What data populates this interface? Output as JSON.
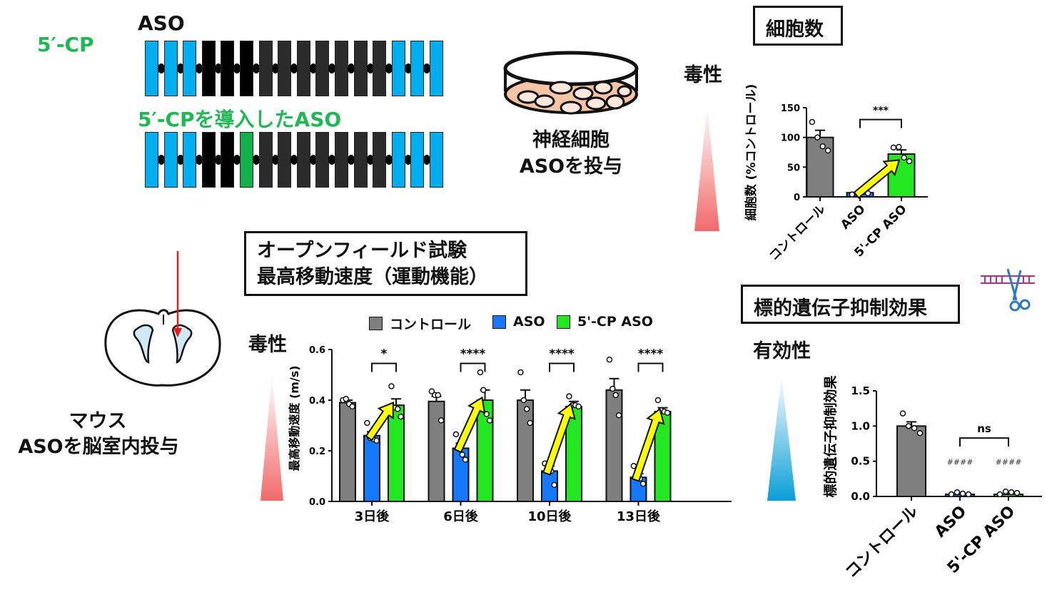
{
  "aso_panel": {
    "label_5cp": "5′-CP",
    "label_aso": "ASO",
    "label_modified": "5′-CPを導入したASO",
    "strand_aso": [
      "wing",
      "wing",
      "wing",
      "gap-dark",
      "gap-dark",
      "gap-dark",
      "gap",
      "gap",
      "gap",
      "gap",
      "gap",
      "gap",
      "gap",
      "wing",
      "wing",
      "wing"
    ],
    "strand_modified": [
      "wing",
      "wing",
      "wing",
      "gap-dark",
      "gap-dark",
      "5cp",
      "gap",
      "gap",
      "gap",
      "gap",
      "gap",
      "gap",
      "gap",
      "wing",
      "wing",
      "wing"
    ],
    "colors": {
      "wing": "#00aeef",
      "gap-dark": "#000000",
      "gap": "#2b2b2b",
      "5cp": "#12b04a"
    }
  },
  "neuron_panel": {
    "line1": "神経細胞",
    "line2": "ASOを投与"
  },
  "mouse_panel": {
    "line1": "マウス",
    "line2": "ASOを脳室内投与"
  },
  "cell_count_title": "細胞数",
  "open_field_title": {
    "line1": "オープンフィールド試験",
    "line2": "最高移動速度（運動機能）"
  },
  "target_title": "標的遺伝子抑制効果",
  "toxicity_label_1": "毒性",
  "toxicity_label_2": "毒性",
  "efficacy_label": "有効性",
  "legend": [
    {
      "label": "コントロール",
      "color": "#7f7f7f"
    },
    {
      "label": "ASO",
      "color": "#1479ff"
    },
    {
      "label": "5'-CP ASO",
      "color": "#22e822"
    }
  ],
  "chart_data": [
    {
      "id": "cell_count",
      "type": "bar",
      "ylabel": "細胞数 (%コントロール)",
      "ylim": [
        0,
        150
      ],
      "yticks": [
        "0",
        "50",
        "100",
        "150"
      ],
      "categories": [
        "コントロール",
        "ASO",
        "5'-CP ASO"
      ],
      "values": [
        100,
        7,
        72
      ],
      "errors": [
        12,
        2,
        7
      ],
      "points": [
        [
          126,
          100,
          85,
          78
        ],
        [
          4,
          6,
          8,
          6
        ],
        [
          83,
          84,
          66,
          60
        ]
      ],
      "colors": [
        "#7f7f7f",
        "#1479ff",
        "#22e822"
      ],
      "significance": [
        {
          "between": [
            "ASO",
            "5'-CP ASO"
          ],
          "label": "***"
        }
      ]
    },
    {
      "id": "max_speed",
      "type": "bar",
      "ylabel": "最高移動速度 (m/s)",
      "ylim": [
        0,
        0.6
      ],
      "yticks": [
        "0.0",
        "0.2",
        "0.4",
        "0.6"
      ],
      "categories": [
        "3日後",
        "6日後",
        "10日後",
        "13日後"
      ],
      "series": [
        {
          "name": "コントロール",
          "values": [
            0.39,
            0.395,
            0.4,
            0.44
          ],
          "errors": [
            0.01,
            0.02,
            0.04,
            0.045
          ],
          "points": [
            [
              0.4,
              0.405,
              0.385,
              0.375
            ],
            [
              0.435,
              0.42,
              0.42,
              0.32
            ],
            [
              0.51,
              0.4,
              0.365,
              0.31
            ],
            [
              0.56,
              0.445,
              0.42,
              0.34
            ]
          ]
        },
        {
          "name": "ASO",
          "values": [
            0.26,
            0.21,
            0.12,
            0.095
          ],
          "errors": [
            0.015,
            0.02,
            0.02,
            0.015
          ],
          "points": [
            [
              0.31,
              0.25,
              0.245,
              0.24
            ],
            [
              0.265,
              0.225,
              0.185,
              0.165
            ],
            [
              0.15,
              0.14,
              0.12,
              0.065
            ],
            [
              0.14,
              0.11,
              0.09,
              0.07
            ]
          ]
        },
        {
          "name": "5'-CP ASO",
          "values": [
            0.38,
            0.4,
            0.375,
            0.355
          ],
          "errors": [
            0.025,
            0.04,
            0.02,
            0.015
          ],
          "points": [
            [
              0.455,
              0.37,
              0.365,
              0.335
            ],
            [
              0.51,
              0.44,
              0.345,
              0.32
            ],
            [
              0.415,
              0.38,
              0.38,
              0.375
            ],
            [
              0.4,
              0.36,
              0.355,
              0.35
            ]
          ]
        }
      ],
      "colors": [
        "#7f7f7f",
        "#1479ff",
        "#22e822"
      ],
      "significance": [
        "*",
        "****",
        "****",
        "****"
      ],
      "legend_position": "top"
    },
    {
      "id": "target_suppression",
      "type": "bar",
      "ylabel": "標的遺伝子抑制効果",
      "ylim": [
        0,
        1.5
      ],
      "yticks": [
        "0.0",
        "0.5",
        "1.0",
        "1.5"
      ],
      "categories": [
        "コントロール",
        "ASO",
        "5'-CP ASO"
      ],
      "values": [
        1.0,
        0.03,
        0.03
      ],
      "errors": [
        0.06,
        0.005,
        0.005
      ],
      "points": [
        [
          1.18,
          1.0,
          0.97,
          0.9
        ],
        [
          0.03,
          0.06,
          0.04,
          0.03
        ],
        [
          0.03,
          0.07,
          0.06,
          0.05
        ]
      ],
      "colors": [
        "#7f7f7f",
        "#1479ff",
        "#22e822"
      ],
      "markers": [
        "",
        "####",
        "####"
      ],
      "significance": [
        {
          "between": [
            "ASO",
            "5'-CP ASO"
          ],
          "label": "ns"
        }
      ]
    }
  ]
}
